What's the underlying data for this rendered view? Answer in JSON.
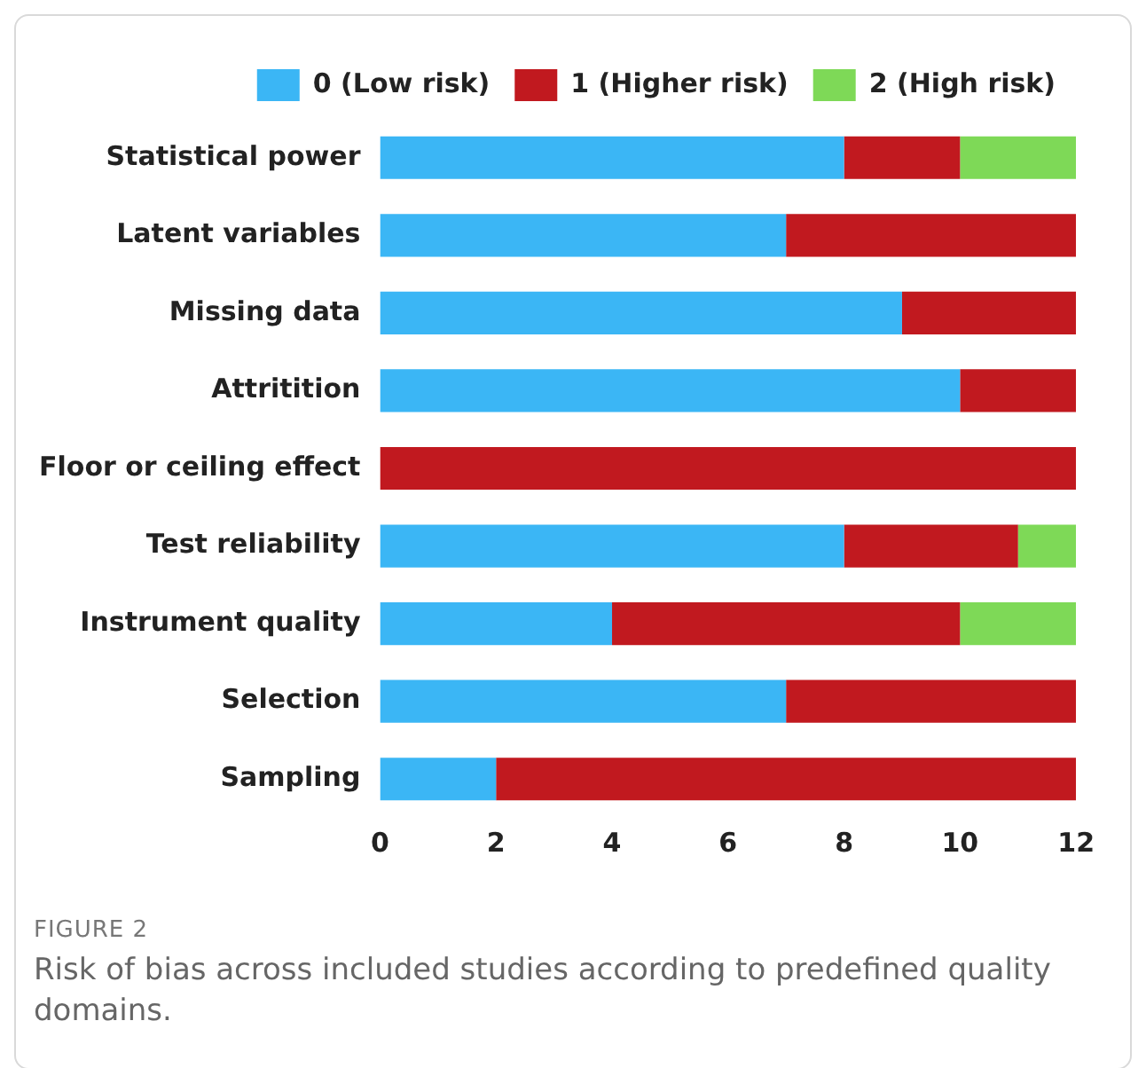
{
  "chart_data": {
    "type": "bar",
    "orientation": "horizontal",
    "stacked": true,
    "categories": [
      "Statistical power",
      "Latent variables",
      "Missing data",
      "Attritition",
      "Floor or ceiling effect",
      "Test reliability",
      "Instrument quality",
      "Selection",
      "Sampling"
    ],
    "series": [
      {
        "name": "0 (Low risk)",
        "color": "#3bb6f5",
        "values": [
          8,
          7,
          9,
          10,
          0,
          8,
          4,
          7,
          2
        ]
      },
      {
        "name": "1 (Higher risk)",
        "color": "#c1191f",
        "values": [
          2,
          5,
          3,
          2,
          12,
          3,
          6,
          5,
          10
        ]
      },
      {
        "name": "2 (High risk)",
        "color": "#7ed957",
        "values": [
          2,
          0,
          0,
          0,
          0,
          1,
          2,
          0,
          0
        ]
      }
    ],
    "xlim": [
      0,
      12
    ],
    "xticks": [
      0,
      2,
      4,
      6,
      8,
      10,
      12
    ],
    "grid": false,
    "legend": "top",
    "annotations": [
      "FIGURE 2",
      "Risk of bias across included studies according to predefined quality domains."
    ]
  }
}
